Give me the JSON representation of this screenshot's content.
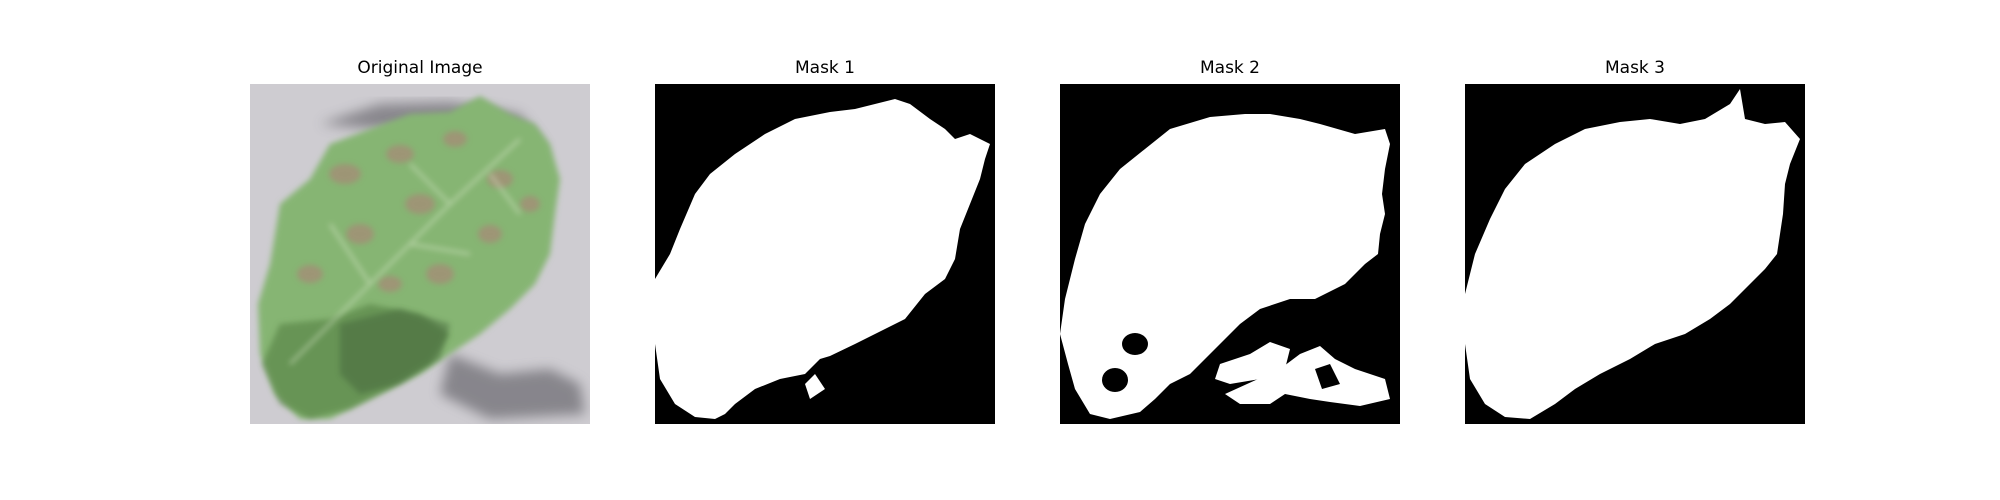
{
  "figure": {
    "panels": [
      {
        "title": "Original Image",
        "kind": "photo"
      },
      {
        "title": "Mask 1",
        "kind": "mask"
      },
      {
        "title": "Mask 2",
        "kind": "mask"
      },
      {
        "title": "Mask 3",
        "kind": "mask"
      }
    ]
  },
  "colors": {
    "mask_background": "#000000",
    "mask_foreground": "#ffffff",
    "photo_background": "#c9c6cc",
    "leaf_green": "#86b573",
    "leaf_dark_green": "#4f7a3c",
    "leaf_spot_brown": "#a88877"
  }
}
